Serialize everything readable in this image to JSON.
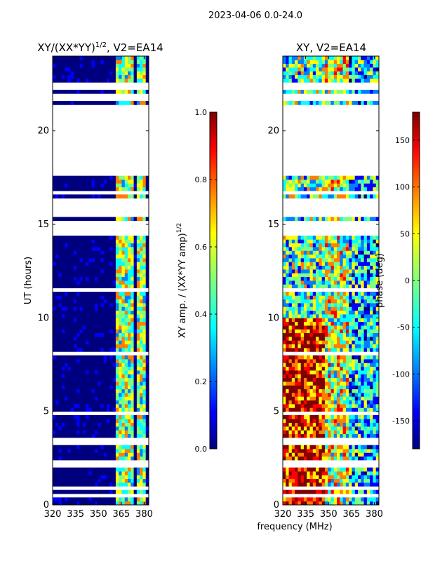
{
  "suptitle": "2023-04-06 0.0-24.0",
  "xlabel_shared": "frequency (MHz)",
  "colors": {
    "jet": [
      "#00007f",
      "#0000ff",
      "#007fff",
      "#00ffff",
      "#7fff7f",
      "#ffff00",
      "#ff7f00",
      "#ff0000",
      "#7f0000"
    ],
    "gap": "#ffffff"
  },
  "chart_data": [
    {
      "type": "heatmap",
      "name": "amplitude",
      "title_main": "XY/(XX*YY)",
      "title_sup": "1/2",
      "title_tail": ", V2=EA14",
      "xlabel": "",
      "ylabel": "UT (hours)",
      "xlim": [
        320,
        383
      ],
      "ylim": [
        0,
        24
      ],
      "xticks": [
        320,
        335,
        350,
        365,
        380
      ],
      "xtick_labels": [
        "320",
        "335",
        "350",
        "365",
        "380"
      ],
      "yticks": [
        0,
        5,
        10,
        15,
        20
      ],
      "ytick_labels": [
        "0",
        "5",
        "10",
        "15",
        "20"
      ],
      "data_gaps_hours": [
        [
          0.4,
          0.5
        ],
        [
          0.9,
          1.0
        ],
        [
          1.4,
          1.5
        ],
        [
          2.1,
          2.4
        ],
        [
          3.3,
          3.6
        ],
        [
          4.9,
          5.0
        ],
        [
          8.0,
          8.1
        ],
        [
          11.5,
          11.6
        ],
        [
          14.5,
          15.1
        ],
        [
          15.4,
          16.4
        ],
        [
          16.6,
          16.8
        ],
        [
          17.7,
          21.5
        ],
        [
          21.7,
          22.0
        ],
        [
          22.2,
          22.7
        ],
        [
          23.2,
          23.3
        ]
      ],
      "colorbar": {
        "label_main": "XY amp. / (XX*YY amp)",
        "label_sup": "1/2",
        "range": [
          0.0,
          1.0
        ],
        "ticks": [
          "0.0",
          "0.2",
          "0.4",
          "0.6",
          "0.8",
          "1.0"
        ]
      }
    },
    {
      "type": "heatmap",
      "name": "phase",
      "title_main": "XY, V2=EA14",
      "xlabel": "frequency (MHz)",
      "ylabel": "",
      "xlim": [
        320,
        383
      ],
      "ylim": [
        0,
        24
      ],
      "xticks": [
        320,
        335,
        350,
        365,
        380
      ],
      "xtick_labels": [
        "320",
        "335",
        "350",
        "365",
        "380"
      ],
      "yticks": [
        0,
        5,
        10,
        15,
        20
      ],
      "ytick_labels": [
        "0",
        "5",
        "10",
        "15",
        "20"
      ],
      "data_gaps_hours": [
        [
          0.4,
          0.5
        ],
        [
          0.9,
          1.0
        ],
        [
          1.4,
          1.5
        ],
        [
          2.1,
          2.4
        ],
        [
          3.3,
          3.6
        ],
        [
          4.9,
          5.0
        ],
        [
          8.0,
          8.1
        ],
        [
          11.5,
          11.6
        ],
        [
          14.5,
          15.1
        ],
        [
          15.4,
          16.4
        ],
        [
          16.6,
          16.8
        ],
        [
          17.7,
          21.5
        ],
        [
          21.7,
          22.0
        ],
        [
          22.2,
          22.7
        ],
        [
          23.2,
          23.3
        ]
      ],
      "colorbar": {
        "label_main": "phase (deg)",
        "range": [
          -180,
          180
        ],
        "ticks": [
          "-150",
          "-100",
          "-50",
          "0",
          "50",
          "100",
          "150"
        ],
        "tick_values": [
          -150,
          -100,
          -50,
          0,
          50,
          100,
          150
        ]
      }
    }
  ]
}
